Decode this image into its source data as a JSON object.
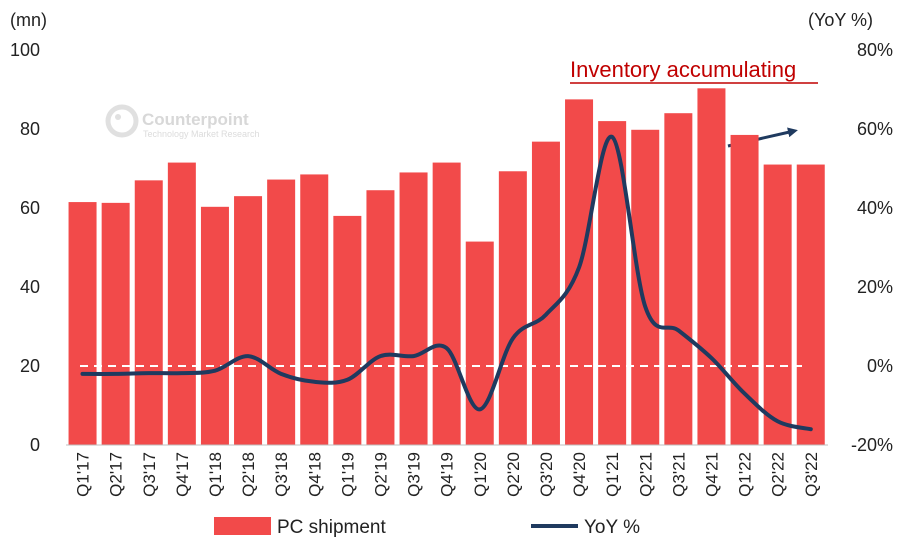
{
  "chart_data": {
    "type": "bar+line",
    "title": "",
    "categories": [
      "Q1'17",
      "Q2'17",
      "Q3'17",
      "Q4'17",
      "Q1'18",
      "Q2'18",
      "Q3'18",
      "Q4'18",
      "Q1'19",
      "Q2'19",
      "Q3'19",
      "Q4'19",
      "Q1'20",
      "Q2'20",
      "Q3'20",
      "Q4'20",
      "Q1'21",
      "Q2'21",
      "Q3'21",
      "Q4'21",
      "Q1'22",
      "Q2'22",
      "Q3'22"
    ],
    "series": [
      {
        "name": "PC shipment",
        "type": "bar",
        "axis": "left",
        "color": "#f24a4a",
        "values": [
          61.5,
          61.3,
          67,
          71.5,
          60.3,
          63,
          67.2,
          68.5,
          58,
          64.5,
          69,
          71.5,
          51.5,
          69.3,
          76.8,
          87.5,
          82,
          79.8,
          84,
          90.3,
          78.5,
          71,
          71
        ]
      },
      {
        "name": "YoY %",
        "type": "line",
        "axis": "right",
        "color": "#1f3a5f",
        "values": [
          -2,
          -2,
          -1.8,
          -1.8,
          -1.2,
          2.5,
          -2,
          -4,
          -3.5,
          2.5,
          2.5,
          4.5,
          -11,
          7,
          13,
          25,
          58,
          15,
          9,
          2,
          -7,
          -14,
          -16
        ]
      }
    ],
    "y_left": {
      "label": "(mn)",
      "ylim": [
        0,
        100
      ],
      "ticks": [
        0,
        20,
        40,
        60,
        80,
        100
      ]
    },
    "y_right": {
      "label": "(YoY %)",
      "ylim": [
        -20,
        80
      ],
      "ticks": [
        -20,
        0,
        20,
        40,
        60,
        80
      ],
      "tick_labels": [
        "-20%",
        "0%",
        "20%",
        "40%",
        "60%",
        "80%"
      ]
    },
    "zero_line": {
      "axis": "right",
      "value": 0,
      "style": "dashed",
      "color": "#ffffff"
    },
    "annotation": {
      "text": "Inventory accumulating",
      "color": "#c00000"
    },
    "legend": {
      "position": "bottom"
    },
    "watermark": {
      "name": "Counterpoint",
      "tagline": "Technology Market Research"
    }
  }
}
